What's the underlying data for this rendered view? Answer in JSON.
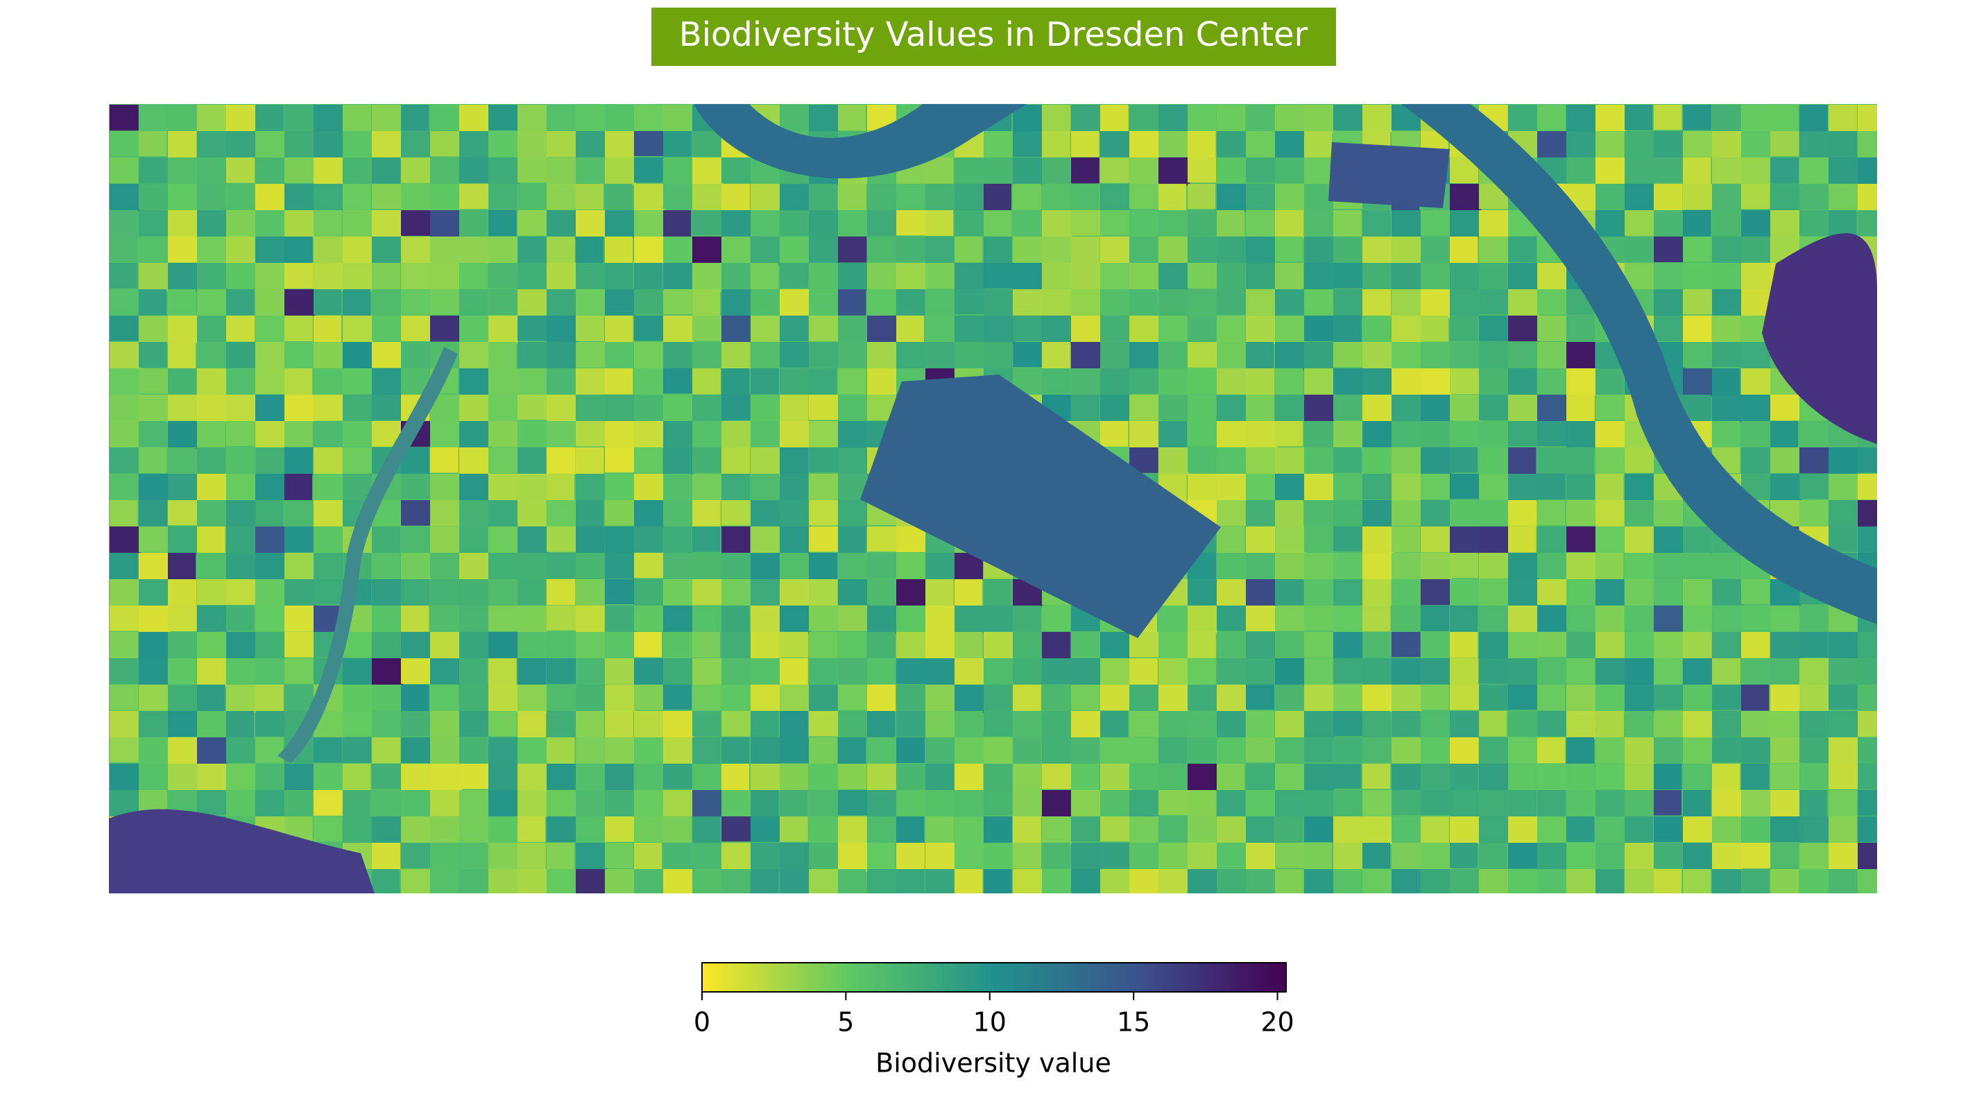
{
  "chart_data": {
    "type": "choropleth",
    "title": "Biodiversity Values in Dresden Center",
    "colorbar": {
      "label": "Biodiversity value",
      "lim": [
        0,
        20.3
      ],
      "ticks": [
        0,
        5,
        10,
        15,
        20
      ],
      "colormap": "viridis_r"
    }
  }
}
